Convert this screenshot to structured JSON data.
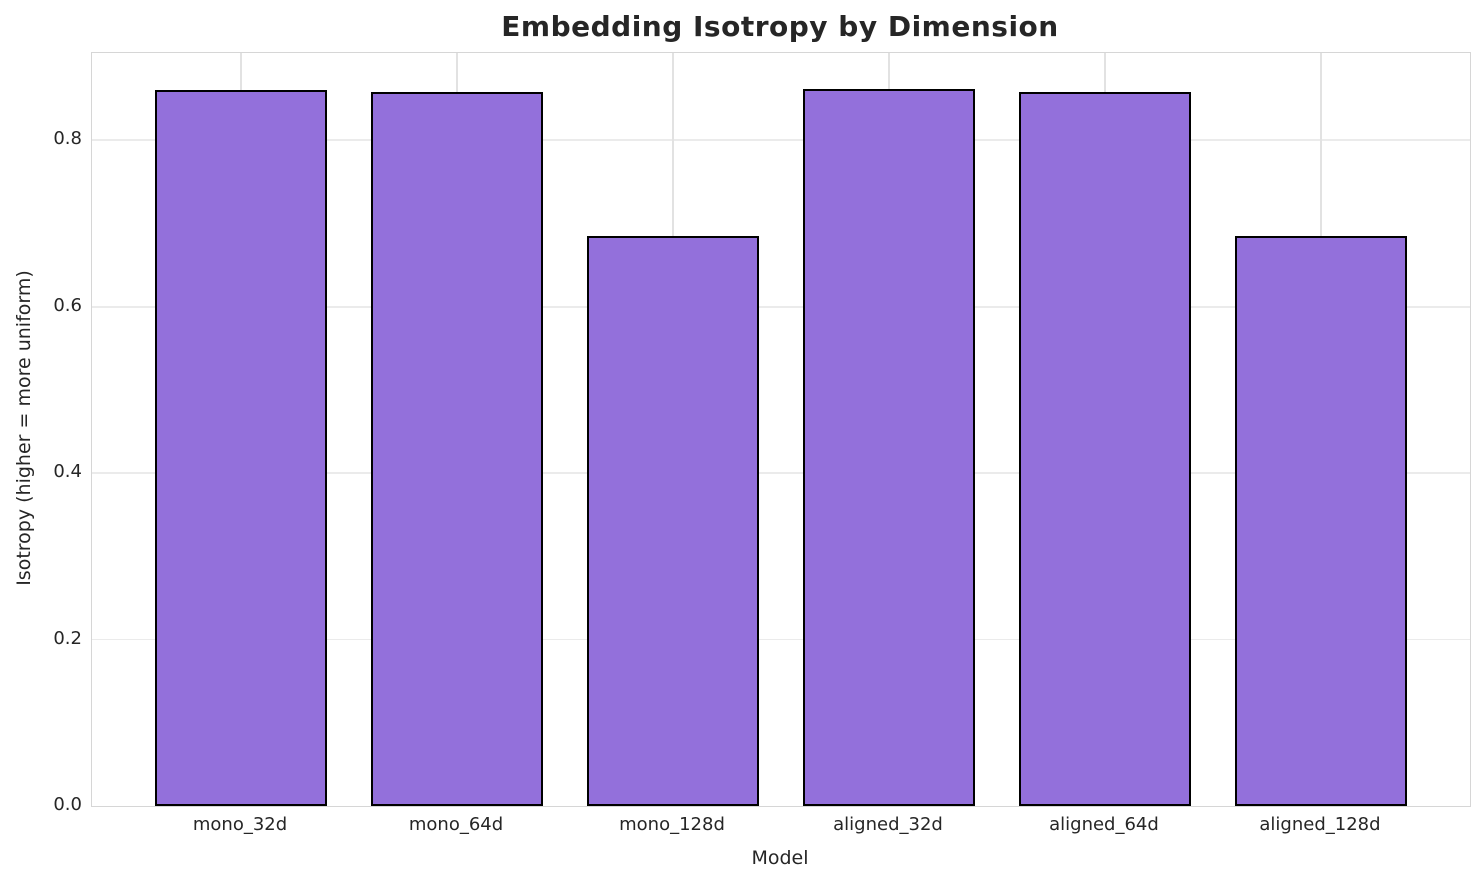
{
  "chart_data": {
    "type": "bar",
    "title": "Embedding Isotropy by Dimension",
    "xlabel": "Model",
    "ylabel": "Isotropy (higher = more uniform)",
    "categories": [
      "mono_32d",
      "mono_64d",
      "mono_128d",
      "aligned_32d",
      "aligned_64d",
      "aligned_128d"
    ],
    "values": [
      0.861,
      0.858,
      0.685,
      0.862,
      0.858,
      0.685
    ],
    "yticks": [
      0.0,
      0.2,
      0.4,
      0.6,
      0.8
    ],
    "ytick_labels": [
      "0.0",
      "0.2",
      "0.4",
      "0.6",
      "0.8"
    ],
    "ylim": [
      0,
      0.905
    ],
    "xlim": [
      -0.69,
      5.69
    ],
    "bar_width_units": 0.8,
    "grid": true,
    "legend": "none",
    "colors": {
      "bar_fill": "#9370DB",
      "bar_edge": "#000000",
      "grid_h": "#ebebeb",
      "grid_v": "#e2e2e2",
      "spine": "#d6d6d6",
      "text": "#262626",
      "background": "#ffffff"
    }
  }
}
